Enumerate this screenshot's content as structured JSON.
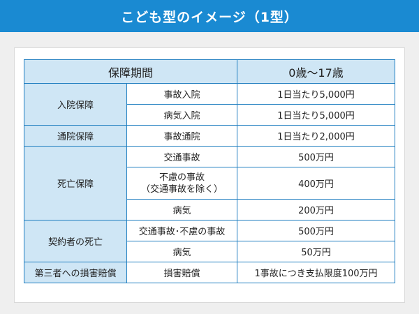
{
  "title": "こども型のイメージ（1型）",
  "table": {
    "header": {
      "period": "保障期間",
      "age": "0歳〜17歳"
    },
    "groups": {
      "hospital": {
        "label": "入院保障",
        "rows": [
          {
            "item": "事故入院",
            "value": "1日当たり5,000円"
          },
          {
            "item": "病気入院",
            "value": "1日当たり5,000円"
          }
        ]
      },
      "outpatient": {
        "label": "通院保障",
        "rows": [
          {
            "item": "事故通院",
            "value": "1日当たり2,000円"
          }
        ]
      },
      "death": {
        "label": "死亡保障",
        "rows": [
          {
            "item": "交通事故",
            "value": "500万円"
          },
          {
            "item_line1": "不慮の事故",
            "item_line2": "（交通事故を除く）",
            "value": "400万円"
          },
          {
            "item": "病気",
            "value": "200万円"
          }
        ]
      },
      "contractor": {
        "label": "契約者の死亡",
        "rows": [
          {
            "item": "交通事故･不慮の事故",
            "value": "500万円"
          },
          {
            "item": "病気",
            "value": "50万円"
          }
        ]
      },
      "liability": {
        "label": "第三者への損害賠償",
        "rows": [
          {
            "item": "損害賠償",
            "value": "1事故につき支払限度100万円"
          }
        ]
      }
    }
  }
}
